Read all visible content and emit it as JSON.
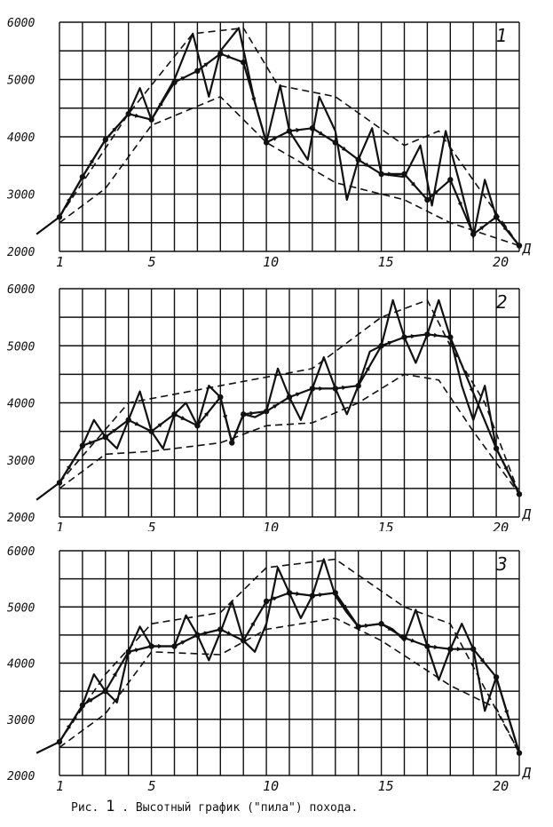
{
  "caption": {
    "prefix": "Рис.",
    "number": "1",
    "text": ". Высотный график (\"пила\") похода."
  },
  "chart_data": [
    {
      "type": "line",
      "panel_label": "1",
      "xlabel": "Д",
      "x_ticks": [
        1,
        5,
        10,
        15,
        20
      ],
      "x_tick_labels": [
        "1",
        "5",
        "10",
        "15",
        "20"
      ],
      "y_ticks": [
        2000,
        3000,
        4000,
        5000,
        6000
      ],
      "y_tick_labels": [
        "2000",
        "3000",
        "4000",
        "5000",
        "6000"
      ],
      "xlim": [
        1,
        21
      ],
      "ylim": [
        2000,
        6000
      ],
      "grid": true,
      "series": [
        {
          "role": "saw",
          "x": [
            0,
            1,
            2,
            3,
            4,
            4.5,
            5,
            6,
            6.8,
            7.5,
            8,
            8.8,
            9.5,
            10,
            10.6,
            11,
            11.8,
            12.3,
            13,
            13.5,
            14,
            14.6,
            15,
            16,
            16.7,
            17.2,
            17.8,
            18.4,
            19,
            19.5,
            20,
            21
          ],
          "y": [
            2300,
            2600,
            3300,
            3950,
            4400,
            4850,
            4300,
            5000,
            5800,
            4700,
            5500,
            5900,
            4600,
            3900,
            4900,
            4100,
            3600,
            4700,
            4100,
            2900,
            3600,
            4150,
            3350,
            3300,
            3850,
            2800,
            4100,
            3200,
            2250,
            3250,
            2600,
            2100
          ]
        },
        {
          "role": "trend",
          "x": [
            1,
            2,
            3,
            4,
            5,
            6,
            7,
            8,
            9,
            10,
            11,
            12,
            13,
            14,
            15,
            16,
            17,
            18,
            19,
            20,
            21
          ],
          "y": [
            2600,
            3300,
            3950,
            4400,
            4300,
            4950,
            5150,
            5450,
            5300,
            3900,
            4100,
            4150,
            3900,
            3600,
            3350,
            3350,
            2900,
            3250,
            2300,
            2600,
            2100
          ]
        },
        {
          "role": "upper-envelope",
          "x": [
            1,
            4,
            6.8,
            9,
            10.5,
            13,
            16,
            17.5,
            21
          ],
          "y": [
            2600,
            4400,
            5800,
            5900,
            4900,
            4700,
            3850,
            4100,
            2100
          ]
        },
        {
          "role": "lower-envelope",
          "x": [
            1,
            3,
            5,
            8,
            10,
            13,
            16,
            18,
            21
          ],
          "y": [
            2500,
            3100,
            4200,
            4700,
            3900,
            3200,
            2900,
            2500,
            2100
          ]
        }
      ]
    },
    {
      "type": "line",
      "panel_label": "2",
      "xlabel": "Д",
      "x_ticks": [
        1,
        5,
        10,
        15,
        20
      ],
      "x_tick_labels": [
        "1",
        "5",
        "10",
        "15",
        "20"
      ],
      "y_ticks": [
        2000,
        3000,
        4000,
        5000,
        6000
      ],
      "y_tick_labels": [
        "2000",
        "3000",
        "4000",
        "5000",
        "6000"
      ],
      "xlim": [
        1,
        21
      ],
      "ylim": [
        2000,
        6000
      ],
      "grid": true,
      "series": [
        {
          "role": "saw",
          "x": [
            0,
            1,
            2,
            2.5,
            3,
            3.5,
            4,
            4.5,
            5,
            5.5,
            6,
            6.5,
            7,
            7.5,
            8,
            8.5,
            9,
            9.5,
            10,
            10.5,
            11,
            11.5,
            12,
            12.5,
            13,
            13.5,
            14,
            14.5,
            15,
            15.5,
            16,
            16.5,
            17,
            17.5,
            18,
            18.5,
            19,
            19.5,
            20,
            21
          ],
          "y": [
            2300,
            2600,
            3250,
            3700,
            3400,
            3200,
            3700,
            4200,
            3500,
            3200,
            3800,
            4000,
            3600,
            4300,
            4100,
            3300,
            3800,
            3750,
            3850,
            4600,
            4100,
            3700,
            4250,
            4800,
            4250,
            3800,
            4300,
            4900,
            5000,
            5800,
            5150,
            4700,
            5200,
            5800,
            5150,
            4300,
            3700,
            4300,
            3200,
            2400
          ]
        },
        {
          "role": "trend",
          "x": [
            1,
            2,
            3,
            4,
            5,
            6,
            7,
            8,
            8.5,
            9,
            10,
            11,
            12,
            13,
            14,
            15,
            16,
            17,
            18,
            20,
            21
          ],
          "y": [
            2600,
            3250,
            3400,
            3700,
            3500,
            3800,
            3600,
            4100,
            3300,
            3800,
            3850,
            4100,
            4250,
            4250,
            4300,
            5000,
            5150,
            5200,
            5150,
            3200,
            2400
          ]
        },
        {
          "role": "upper-envelope",
          "x": [
            1,
            4,
            8,
            12,
            15,
            17,
            18,
            19.5,
            21
          ],
          "y": [
            2600,
            4000,
            4300,
            4600,
            5500,
            5800,
            5000,
            4000,
            2400
          ]
        },
        {
          "role": "lower-envelope",
          "x": [
            1,
            3,
            5,
            8,
            10,
            12,
            14,
            16,
            17.5,
            19,
            21
          ],
          "y": [
            2500,
            3100,
            3150,
            3300,
            3600,
            3650,
            4000,
            4500,
            4400,
            3500,
            2400
          ]
        }
      ]
    },
    {
      "type": "line",
      "panel_label": "3",
      "xlabel": "Д",
      "x_ticks": [
        1,
        5,
        10,
        15,
        20
      ],
      "x_tick_labels": [
        "1",
        "5",
        "10",
        "15",
        "20"
      ],
      "y_ticks": [
        2000,
        3000,
        4000,
        5000,
        6000
      ],
      "y_tick_labels": [
        "2000",
        "3000",
        "4000",
        "5000",
        "6000"
      ],
      "xlim": [
        1,
        21
      ],
      "ylim": [
        2000,
        6000
      ],
      "grid": true,
      "series": [
        {
          "role": "saw",
          "x": [
            0,
            1,
            2,
            2.5,
            3,
            3.5,
            4,
            4.5,
            5,
            6,
            6.5,
            7,
            7.5,
            8,
            8.5,
            9,
            9.5,
            10,
            10.5,
            11,
            11.5,
            12,
            12.5,
            13,
            13.5,
            14,
            15,
            15.5,
            16,
            16.5,
            17,
            17.5,
            18,
            18.5,
            19,
            19.5,
            20,
            21
          ],
          "y": [
            2400,
            2600,
            3250,
            3800,
            3500,
            3300,
            4200,
            4650,
            4300,
            4300,
            4850,
            4500,
            4050,
            4550,
            5100,
            4400,
            4200,
            4700,
            5700,
            5250,
            4800,
            5200,
            5850,
            5200,
            4900,
            4650,
            4700,
            4600,
            4400,
            4950,
            4300,
            3700,
            4250,
            4700,
            4250,
            3150,
            3750,
            2400
          ]
        },
        {
          "role": "trend",
          "x": [
            1,
            2,
            3,
            4,
            5,
            6,
            7,
            8,
            9,
            10,
            11,
            12,
            13,
            14,
            15,
            16,
            17,
            18,
            19,
            20,
            21
          ],
          "y": [
            2600,
            3250,
            3500,
            4200,
            4300,
            4300,
            4500,
            4600,
            4400,
            5100,
            5250,
            5200,
            5250,
            4650,
            4700,
            4450,
            4300,
            4250,
            4250,
            3750,
            2400
          ]
        },
        {
          "role": "upper-envelope",
          "x": [
            1,
            3,
            5,
            8,
            10,
            13,
            16,
            18,
            21
          ],
          "y": [
            2600,
            3800,
            4700,
            4900,
            5700,
            5850,
            5000,
            4700,
            2400
          ]
        },
        {
          "role": "lower-envelope",
          "x": [
            1,
            3,
            5,
            8,
            10,
            13,
            15,
            18,
            20,
            21
          ],
          "y": [
            2500,
            3100,
            4200,
            4150,
            4600,
            4800,
            4400,
            3600,
            3200,
            2400
          ]
        }
      ]
    }
  ]
}
